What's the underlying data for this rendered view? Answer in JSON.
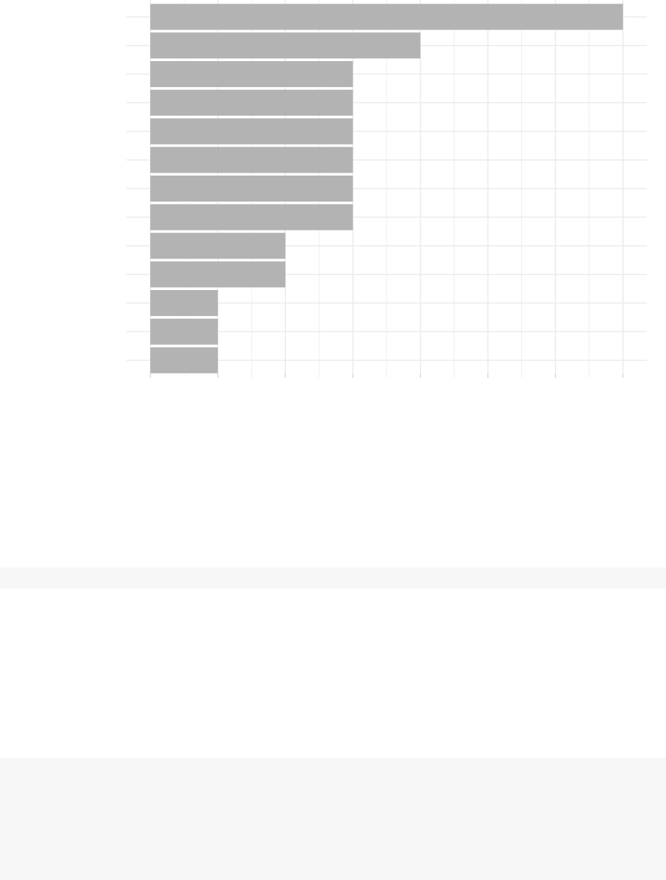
{
  "chart_data": {
    "type": "bar",
    "orientation": "horizontal",
    "categories": [
      "",
      "",
      "",
      "",
      "",
      "",
      "",
      "",
      "",
      "",
      "",
      "",
      ""
    ],
    "values": [
      7,
      4,
      3,
      3,
      3,
      3,
      3,
      3,
      2,
      2,
      1,
      1,
      1
    ],
    "title": "",
    "xlabel": "",
    "ylabel": "",
    "xlim": [
      0,
      7
    ],
    "grid": true,
    "legend": "none",
    "bar_color": "#b3b3b3",
    "grid_color": "#ebebeb",
    "background": "#ffffff"
  }
}
